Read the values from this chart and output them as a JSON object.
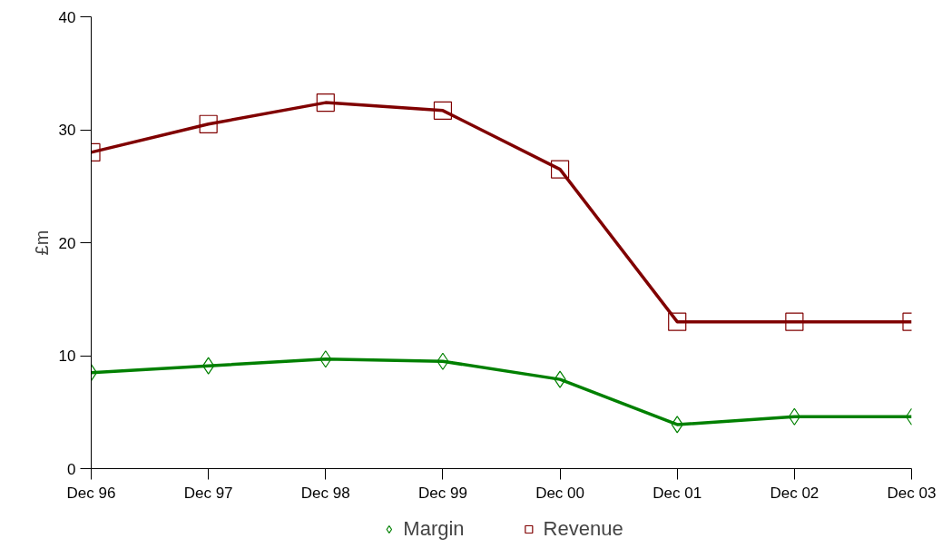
{
  "chart_data": {
    "type": "line",
    "ylabel": "£m",
    "categories": [
      "Dec 96",
      "Dec 97",
      "Dec 98",
      "Dec 99",
      "Dec 00",
      "Dec 01",
      "Dec 02",
      "Dec 03"
    ],
    "series": [
      {
        "name": "Margin",
        "color": "#008000",
        "marker": "diamond",
        "values": [
          8.5,
          9.1,
          9.7,
          9.5,
          7.9,
          3.9,
          4.6,
          4.6
        ]
      },
      {
        "name": "Revenue",
        "color": "#800000",
        "marker": "square",
        "values": [
          28,
          30.5,
          32.4,
          31.7,
          26.5,
          13,
          13,
          13
        ]
      }
    ],
    "ylim": [
      0,
      40
    ],
    "yticks": [
      0,
      10,
      20,
      30,
      40
    ],
    "grid": false,
    "legend": "bottom",
    "line_style": "solid"
  }
}
